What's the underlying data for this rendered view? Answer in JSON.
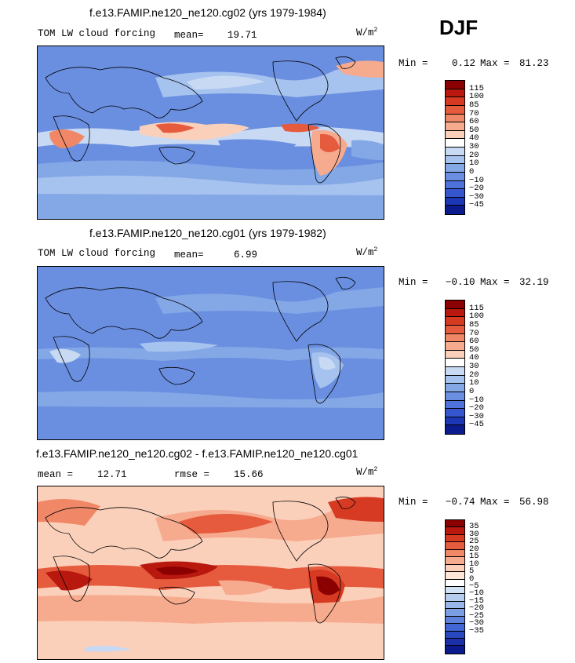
{
  "season": "DJF",
  "units": "W/m",
  "units_sup": "2",
  "palette_main": [
    "#8b0000",
    "#b8180e",
    "#d63a22",
    "#e65b3e",
    "#f08868",
    "#f6aa8e",
    "#fbd0bb",
    "#ffffff",
    "#c8d9f4",
    "#a6c2ee",
    "#84a8e6",
    "#6a8fe0",
    "#4e72da",
    "#3556cf",
    "#1b37b5",
    "#0b1a8c"
  ],
  "palette_diff": [
    "#8b0000",
    "#b8180e",
    "#d63a22",
    "#e65b3e",
    "#f08868",
    "#f6aa8e",
    "#fbd0bb",
    "#fde5d8",
    "#ffffff",
    "#d3e1f5",
    "#b6cdef",
    "#98b6e9",
    "#7b9de2",
    "#5e82db",
    "#4266d3",
    "#2948bf",
    "#1a2fa8",
    "#0b1a8c"
  ],
  "panels": [
    {
      "title": "f.e13.FAMIP.ne120_ne120.cg02 (yrs 1979-1984)",
      "variable": "TOM LW cloud forcing",
      "stat_label": "mean=",
      "stat_value": "19.71",
      "rmse_label": "",
      "rmse_value": "",
      "min_label": "Min =",
      "min_value": "0.12",
      "max_label": "Max =",
      "max_value": "81.23",
      "levels": [
        "115",
        "100",
        "85",
        "70",
        "60",
        "50",
        "40",
        "30",
        "20",
        "10",
        "0",
        "−10",
        "−20",
        "−30",
        "−45"
      ]
    },
    {
      "title": "f.e13.FAMIP.ne120_ne120.cg01 (yrs 1979-1982)",
      "variable": "TOM LW cloud forcing",
      "stat_label": "mean=",
      "stat_value": "6.99",
      "rmse_label": "",
      "rmse_value": "",
      "min_label": "Min =",
      "min_value": "−0.10",
      "max_label": "Max =",
      "max_value": "32.19",
      "levels": [
        "115",
        "100",
        "85",
        "70",
        "60",
        "50",
        "40",
        "30",
        "20",
        "10",
        "0",
        "−10",
        "−20",
        "−30",
        "−45"
      ]
    },
    {
      "title": "f.e13.FAMIP.ne120_ne120.cg02 - f.e13.FAMIP.ne120_ne120.cg01",
      "variable": "",
      "stat_label": "mean =",
      "stat_value": "12.71",
      "rmse_label": "rmse =",
      "rmse_value": "15.66",
      "min_label": "Min =",
      "min_value": "−0.74",
      "max_label": "Max =",
      "max_value": "56.98",
      "levels": [
        "35",
        "30",
        "25",
        "20",
        "15",
        "10",
        "5",
        "0",
        "−5",
        "−10",
        "−15",
        "−20",
        "−25",
        "−30",
        "−35"
      ]
    }
  ]
}
